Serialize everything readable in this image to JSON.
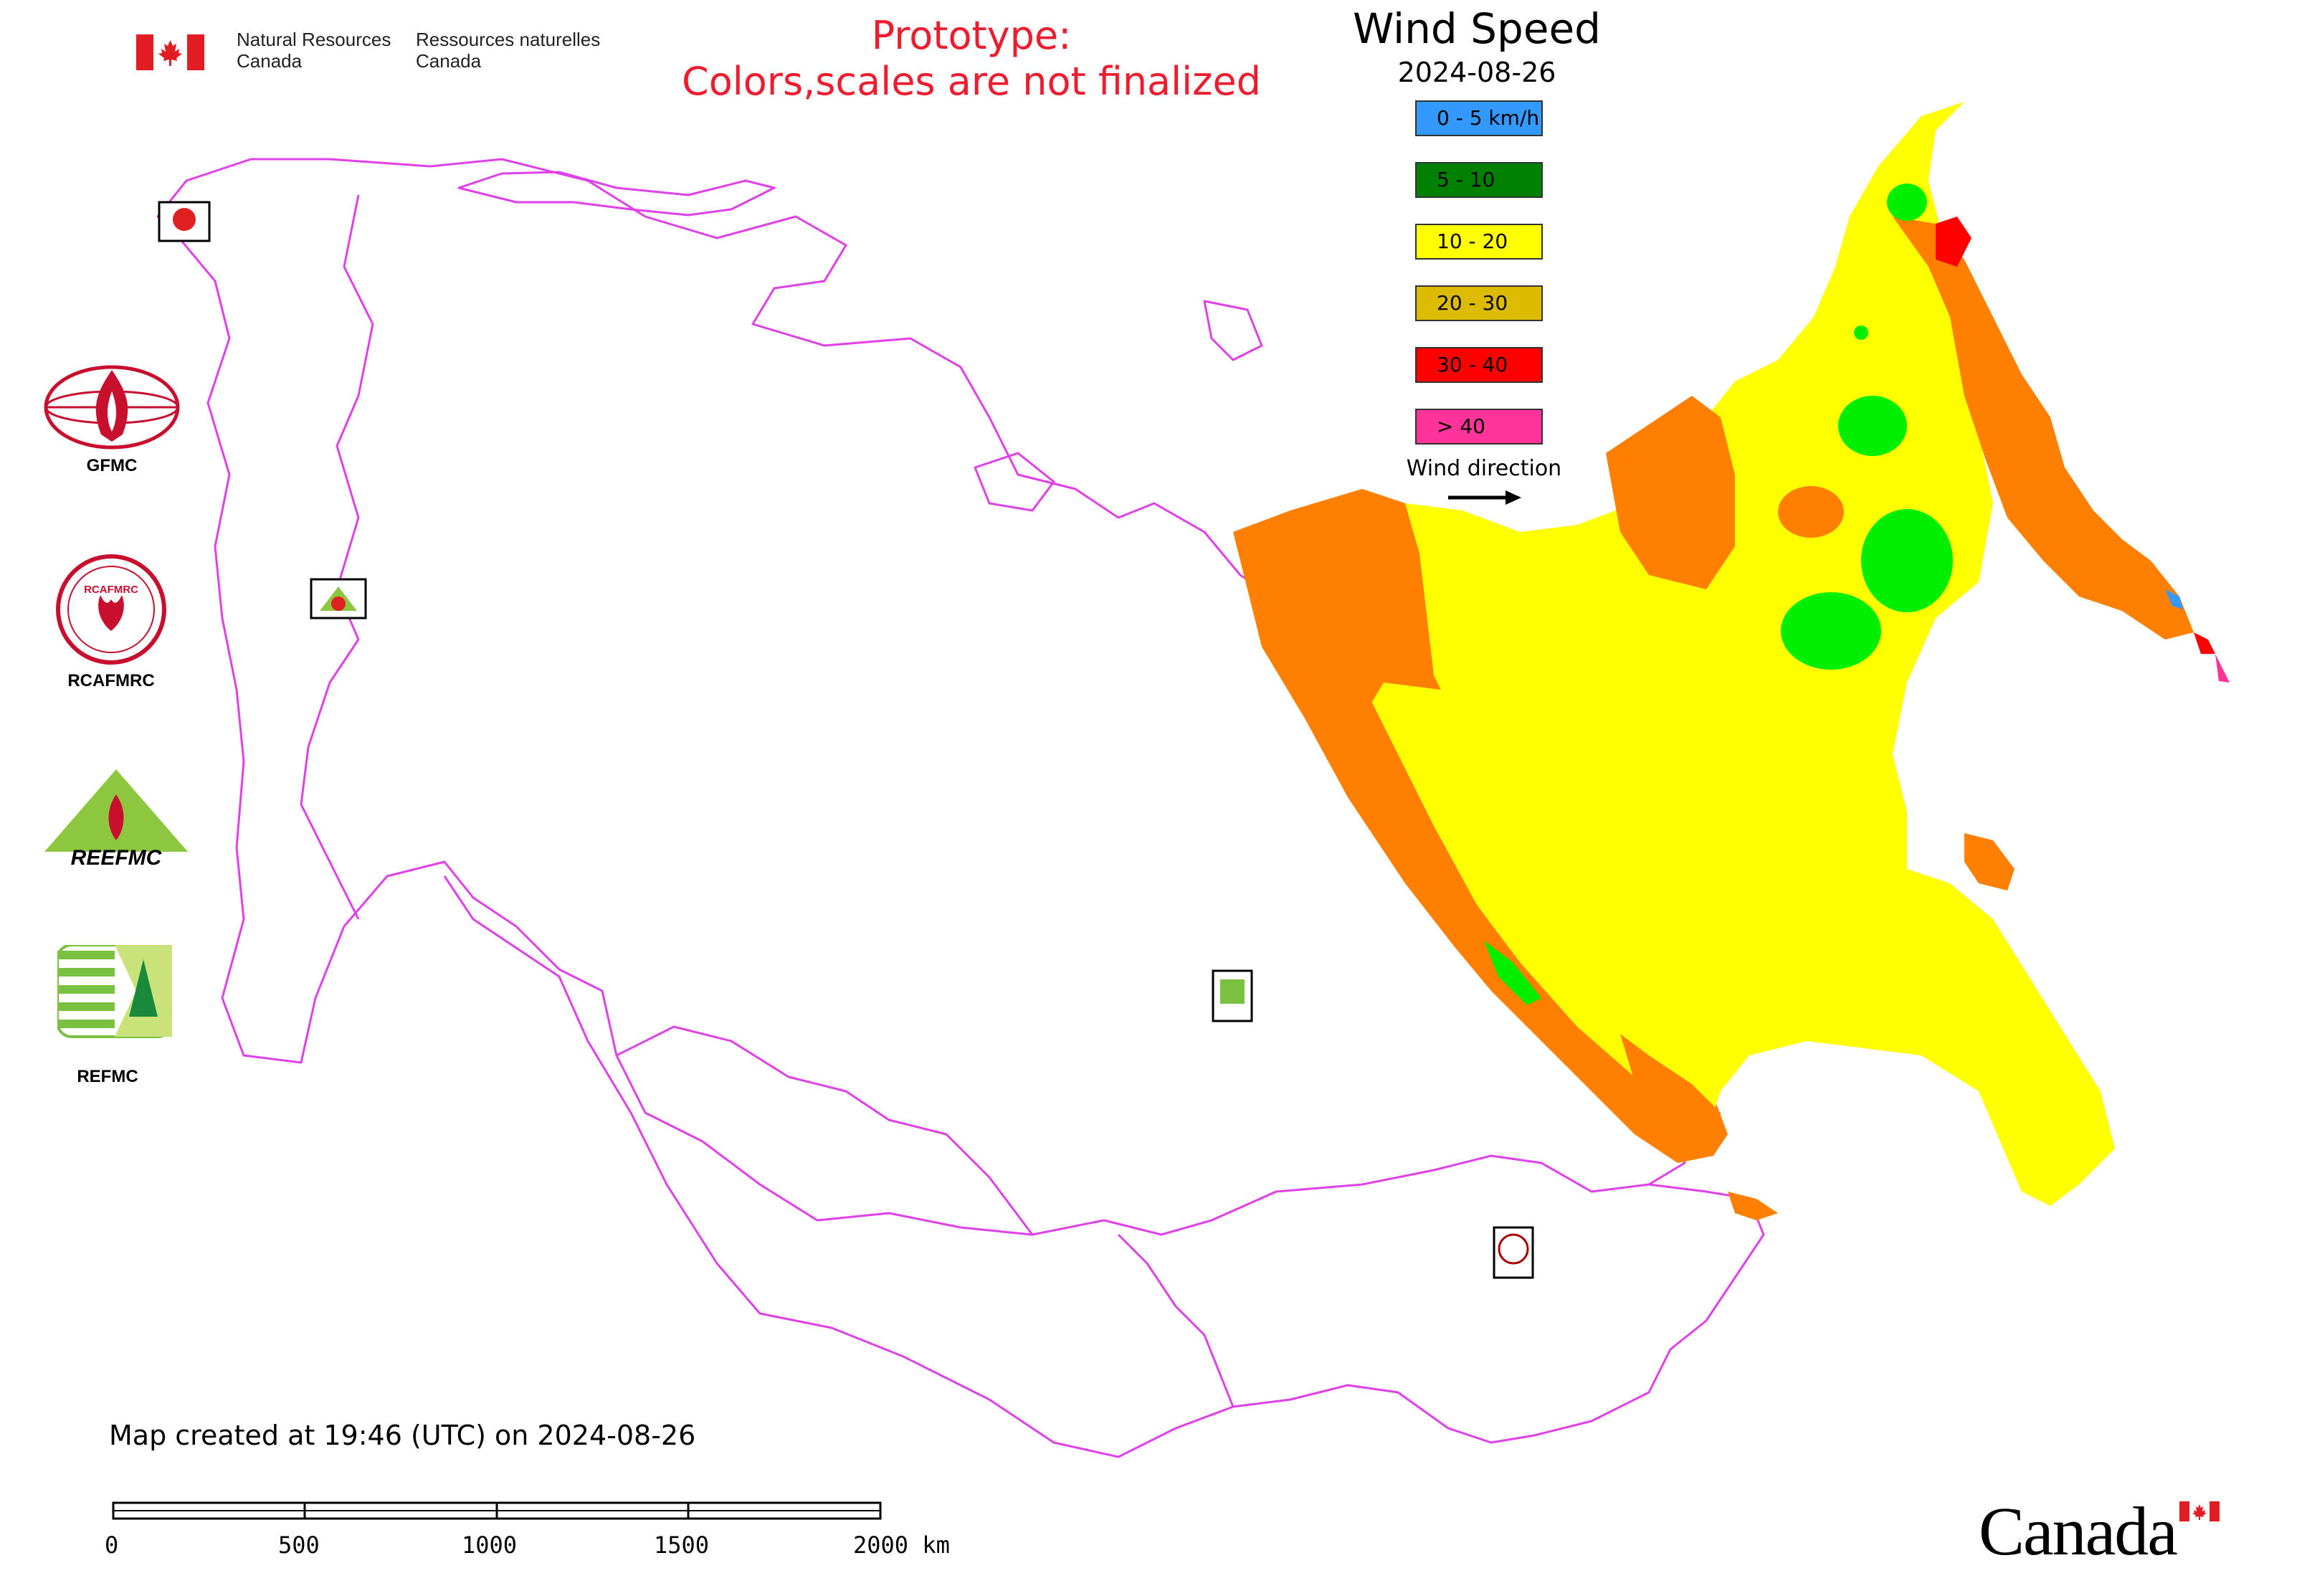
{
  "header": {
    "agency_en": [
      "Natural Resources",
      "Canada"
    ],
    "agency_fr": [
      "Ressources naturelles",
      "Canada"
    ],
    "prototype_notice": [
      "Prototype:",
      "Colors,scales are not finalized"
    ]
  },
  "map": {
    "title": "Wind Speed",
    "date": "2024-08-26",
    "created_note": "Map created at 19:46 (UTC) on 2024-08-26",
    "legend": [
      {
        "label": "0 - 5 km/h",
        "color": "#3399ff"
      },
      {
        "label": "5 - 10",
        "color": "#008000"
      },
      {
        "label": "10 - 20",
        "color": "#ffff00"
      },
      {
        "label": "20 - 30",
        "color": "#ddbb00"
      },
      {
        "label": "30 - 40",
        "color": "#ff0000"
      },
      {
        "label": "> 40",
        "color": "#ff3399"
      }
    ],
    "wind_direction_label": "Wind direction",
    "zone_colors": {
      "boundaries": "#e040e8",
      "speed_10_20": "#ffff00",
      "speed_20_30": "#ff8000",
      "speed_5_10": "#00ee00",
      "speed_30_40": "#ff0000"
    },
    "scale_bar": {
      "ticks": [
        "0",
        "500",
        "1000",
        "1500",
        "2000 km"
      ]
    }
  },
  "logos": {
    "gfmc": "GFMC",
    "rcafmrc": "RCAFMRC",
    "reefmc": "REEFMC",
    "refmc": "REFMC",
    "rcafmrc_ring_text": "RCAFMRC"
  },
  "footer": {
    "wordmark": "Canada"
  }
}
